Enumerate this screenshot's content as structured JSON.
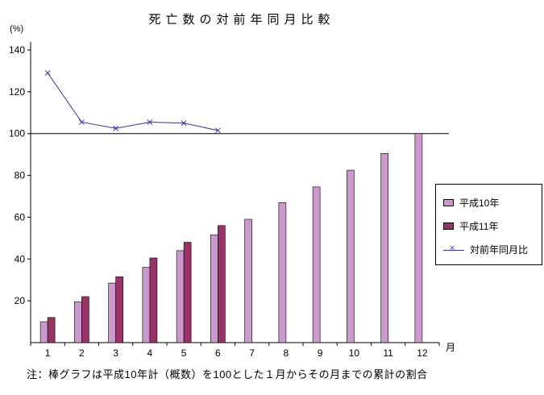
{
  "title": "死亡数の対前年同月比較",
  "note": "注：棒グラフは平成10年計（概数）を100とした１月からその月までの累計の割合",
  "chart_data": {
    "type": "bar",
    "title": "死亡数の対前年同月比較",
    "unit_label": "(%)",
    "x_axis_label": "月",
    "categories": [
      1,
      2,
      3,
      4,
      5,
      6,
      7,
      8,
      9,
      10,
      11,
      12
    ],
    "series": [
      {
        "name": "平成10年",
        "type": "bar",
        "color": "#CC99CC",
        "values": [
          10,
          19.5,
          28.5,
          36,
          44,
          51.5,
          59,
          67,
          74.5,
          82.5,
          90.5,
          100
        ]
      },
      {
        "name": "平成11年",
        "type": "bar",
        "color": "#993366",
        "values": [
          12,
          22,
          31.5,
          40.5,
          48,
          56,
          null,
          null,
          null,
          null,
          null,
          null
        ]
      },
      {
        "name": "対前年同月比",
        "type": "line",
        "color": "#333399",
        "marker": "x",
        "values": [
          129,
          105.5,
          102.5,
          105.5,
          105,
          101.5,
          null,
          null,
          null,
          null,
          null,
          null
        ]
      }
    ],
    "ylim": [
      0,
      140
    ],
    "ytick_interval": 20,
    "reference_line": 100,
    "legend_position": "right",
    "grid": false
  }
}
